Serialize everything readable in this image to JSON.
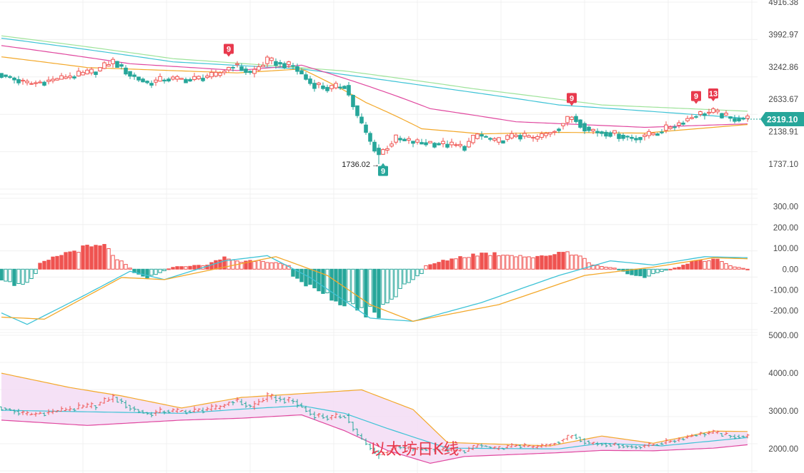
{
  "colors": {
    "up": "#ef5350",
    "down": "#26a69a",
    "ma_green": "#9ee39a",
    "ma_blue": "#3ec3d6",
    "ma_pink": "#e0489f",
    "ma_orange": "#f3a82a",
    "macd_dif": "#3ec3d6",
    "macd_dea": "#f3a82a",
    "boll_upper": "#f3a82a",
    "boll_mid": "#3ec3d6",
    "boll_lower": "#e0489f",
    "boll_fill": "#f3dcf5",
    "marker_up": "#e8394d",
    "marker_down": "#26a69a",
    "price_tag": "#26a69a"
  },
  "watermark": "以太坊日K线",
  "chart_data": [
    {
      "type": "candlestick",
      "panel": "price",
      "y_ticks": [
        "4916.38",
        "3992.97",
        "3242.86",
        "2633.67",
        "2138.91",
        "1737.10"
      ],
      "y_tick_values": [
        4916.38,
        3992.97,
        3242.86,
        2633.67,
        2138.91,
        1737.1
      ],
      "scale": "log",
      "ylim": [
        1480,
        4916.38
      ],
      "last_price": "2319.10",
      "last_price_value": 2319.1,
      "low_label": "1736.02",
      "low_label_arrow": "→",
      "low_value": 1736.02,
      "td_markers": [
        {
          "text": "9",
          "index": 53,
          "kind": "up"
        },
        {
          "text": "9",
          "index": 89,
          "kind": "down"
        },
        {
          "text": "9",
          "index": 133,
          "kind": "up"
        },
        {
          "text": "9",
          "index": 162,
          "kind": "up"
        },
        {
          "text": "13",
          "index": 166,
          "kind": "up"
        }
      ],
      "candle_anchors": [
        [
          0,
          3080
        ],
        [
          6,
          2900
        ],
        [
          12,
          2980
        ],
        [
          17,
          3060
        ],
        [
          22,
          3160
        ],
        [
          26,
          3360
        ],
        [
          30,
          3080
        ],
        [
          34,
          2920
        ],
        [
          38,
          3000
        ],
        [
          44,
          2990
        ],
        [
          50,
          3070
        ],
        [
          54,
          3290
        ],
        [
          58,
          3110
        ],
        [
          62,
          3380
        ],
        [
          68,
          3250
        ],
        [
          72,
          2920
        ],
        [
          76,
          2820
        ],
        [
          80,
          2880
        ],
        [
          83,
          2350
        ],
        [
          86,
          2000
        ],
        [
          88,
          1850
        ],
        [
          92,
          2050
        ],
        [
          96,
          2000
        ],
        [
          102,
          1980
        ],
        [
          108,
          1940
        ],
        [
          111,
          2100
        ],
        [
          115,
          2000
        ],
        [
          120,
          2090
        ],
        [
          124,
          2040
        ],
        [
          128,
          2130
        ],
        [
          133,
          2360
        ],
        [
          137,
          2150
        ],
        [
          142,
          2120
        ],
        [
          147,
          2050
        ],
        [
          152,
          2110
        ],
        [
          157,
          2230
        ],
        [
          162,
          2390
        ],
        [
          166,
          2430
        ],
        [
          170,
          2330
        ],
        [
          174,
          2330
        ]
      ],
      "moving_averages": [
        {
          "key": "ma_green",
          "anchors": [
            [
              0,
              3960
            ],
            [
              40,
              3420
            ],
            [
              80,
              3160
            ],
            [
              110,
              2820
            ],
            [
              140,
              2540
            ],
            [
              174,
              2440
            ]
          ]
        },
        {
          "key": "ma_blue",
          "anchors": [
            [
              0,
              3900
            ],
            [
              40,
              3350
            ],
            [
              70,
              3200
            ],
            [
              100,
              2860
            ],
            [
              130,
              2540
            ],
            [
              174,
              2330
            ]
          ]
        },
        {
          "key": "ma_pink",
          "anchors": [
            [
              0,
              3720
            ],
            [
              30,
              3310
            ],
            [
              55,
              3170
            ],
            [
              70,
              3280
            ],
            [
              100,
              2480
            ],
            [
              120,
              2280
            ],
            [
              150,
              2200
            ],
            [
              174,
              2250
            ]
          ]
        },
        {
          "key": "ma_orange",
          "anchors": [
            [
              0,
              3460
            ],
            [
              20,
              3230
            ],
            [
              55,
              3120
            ],
            [
              70,
              3200
            ],
            [
              85,
              2580
            ],
            [
              98,
              2180
            ],
            [
              112,
              2110
            ],
            [
              130,
              2130
            ],
            [
              150,
              2120
            ],
            [
              174,
              2240
            ]
          ]
        }
      ]
    },
    {
      "type": "macd",
      "panel": "macd",
      "y_ticks": [
        "300.00",
        "200.00",
        "100.00",
        "0.00",
        "-100.00",
        "-200.00"
      ],
      "y_tick_values": [
        300,
        200,
        100,
        0,
        -100,
        -200
      ],
      "ylim": [
        -290,
        340
      ],
      "histogram_anchors": [
        [
          0,
          -60
        ],
        [
          5,
          -80
        ],
        [
          8,
          -20
        ],
        [
          9,
          25
        ],
        [
          14,
          70
        ],
        [
          19,
          100
        ],
        [
          24,
          110
        ],
        [
          27,
          50
        ],
        [
          30,
          5
        ],
        [
          31,
          -15
        ],
        [
          34,
          -40
        ],
        [
          37,
          -15
        ],
        [
          40,
          10
        ],
        [
          48,
          20
        ],
        [
          52,
          55
        ],
        [
          56,
          35
        ],
        [
          60,
          45
        ],
        [
          64,
          30
        ],
        [
          67,
          15
        ],
        [
          68,
          -30
        ],
        [
          73,
          -100
        ],
        [
          78,
          -140
        ],
        [
          84,
          -200
        ],
        [
          88,
          -210
        ],
        [
          94,
          -80
        ],
        [
          98,
          -20
        ],
        [
          99,
          15
        ],
        [
          105,
          50
        ],
        [
          112,
          75
        ],
        [
          119,
          70
        ],
        [
          125,
          55
        ],
        [
          131,
          85
        ],
        [
          134,
          75
        ],
        [
          138,
          20
        ],
        [
          143,
          5
        ],
        [
          146,
          -20
        ],
        [
          150,
          -35
        ],
        [
          155,
          -5
        ],
        [
          158,
          10
        ],
        [
          162,
          40
        ],
        [
          167,
          50
        ],
        [
          170,
          15
        ],
        [
          174,
          0
        ]
      ],
      "dif_anchors": [
        [
          0,
          -210
        ],
        [
          6,
          -265
        ],
        [
          18,
          -140
        ],
        [
          30,
          -10
        ],
        [
          38,
          -50
        ],
        [
          52,
          40
        ],
        [
          62,
          65
        ],
        [
          72,
          -40
        ],
        [
          86,
          -235
        ],
        [
          96,
          -250
        ],
        [
          112,
          -160
        ],
        [
          130,
          -30
        ],
        [
          142,
          40
        ],
        [
          152,
          20
        ],
        [
          164,
          60
        ],
        [
          174,
          55
        ]
      ],
      "dea_anchors": [
        [
          0,
          -230
        ],
        [
          10,
          -240
        ],
        [
          28,
          -40
        ],
        [
          38,
          -50
        ],
        [
          52,
          10
        ],
        [
          64,
          60
        ],
        [
          76,
          -30
        ],
        [
          86,
          -170
        ],
        [
          96,
          -250
        ],
        [
          116,
          -170
        ],
        [
          136,
          -30
        ],
        [
          152,
          10
        ],
        [
          166,
          55
        ],
        [
          174,
          50
        ]
      ]
    },
    {
      "type": "bollinger",
      "panel": "boll",
      "y_ticks": [
        "5000.00",
        "4000.00",
        "3000.00",
        "2000.00"
      ],
      "y_tick_values": [
        5000,
        4000,
        3000,
        2000
      ],
      "ylim": [
        1420,
        5000
      ],
      "upper_anchors": [
        [
          0,
          4000
        ],
        [
          16,
          3620
        ],
        [
          28,
          3400
        ],
        [
          42,
          3080
        ],
        [
          56,
          3360
        ],
        [
          70,
          3460
        ],
        [
          84,
          3560
        ],
        [
          96,
          3040
        ],
        [
          104,
          2170
        ],
        [
          128,
          2080
        ],
        [
          140,
          2340
        ],
        [
          152,
          2150
        ],
        [
          166,
          2470
        ],
        [
          174,
          2460
        ]
      ],
      "mid_anchors": [
        [
          0,
          3020
        ],
        [
          20,
          2980
        ],
        [
          42,
          2940
        ],
        [
          56,
          3050
        ],
        [
          70,
          3140
        ],
        [
          80,
          2940
        ],
        [
          90,
          2540
        ],
        [
          104,
          2020
        ],
        [
          130,
          2000
        ],
        [
          140,
          2150
        ],
        [
          154,
          2080
        ],
        [
          174,
          2300
        ]
      ],
      "lower_anchors": [
        [
          0,
          2760
        ],
        [
          20,
          2620
        ],
        [
          42,
          2760
        ],
        [
          56,
          2810
        ],
        [
          70,
          2900
        ],
        [
          80,
          2480
        ],
        [
          90,
          1960
        ],
        [
          100,
          1620
        ],
        [
          108,
          1800
        ],
        [
          130,
          1900
        ],
        [
          140,
          1960
        ],
        [
          152,
          1950
        ],
        [
          166,
          2020
        ],
        [
          174,
          2110
        ]
      ]
    }
  ]
}
